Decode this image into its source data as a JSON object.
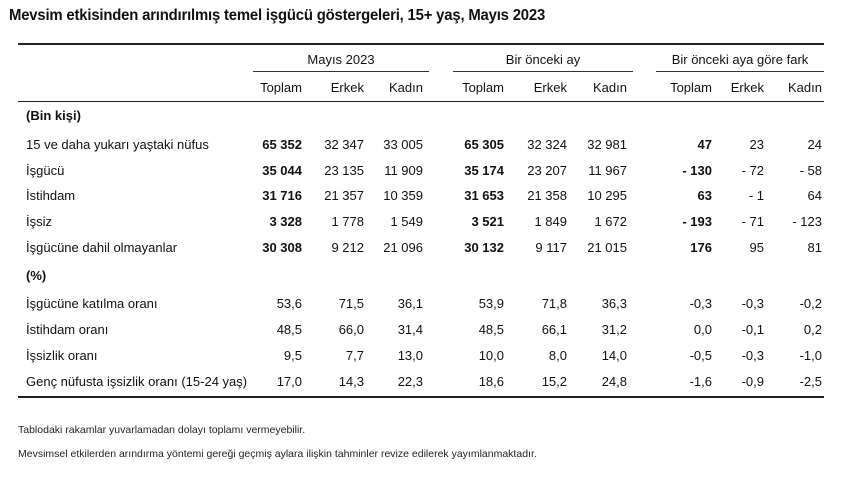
{
  "title": "Mevsim etkisinden arındırılmış temel işgücü göstergeleri, 15+ yaş, Mayıs 2023",
  "groups": [
    "Mayıs 2023",
    "Bir önceki ay",
    "Bir önceki aya göre fark"
  ],
  "subheaders": [
    "Toplam",
    "Erkek",
    "Kadın",
    "Toplam",
    "Erkek",
    "Kadın",
    "Toplam",
    "Erkek",
    "Kadın"
  ],
  "section_thousands": "(Bin kişi)",
  "section_percent": "(%)",
  "rows_thousands": [
    {
      "label": "15 ve daha yukarı yaştaki nüfus",
      "values": [
        "65 352",
        "32 347",
        "33 005",
        "65 305",
        "32 324",
        "32 981",
        "47",
        "23",
        "24"
      ]
    },
    {
      "label": "İşgücü",
      "values": [
        "35 044",
        "23 135",
        "11 909",
        "35 174",
        "23 207",
        "11 967",
        "- 130",
        "- 72",
        "- 58"
      ]
    },
    {
      "label": "İstihdam",
      "values": [
        "31 716",
        "21 357",
        "10 359",
        "31 653",
        "21 358",
        "10 295",
        "63",
        "- 1",
        "64"
      ]
    },
    {
      "label": "İşsiz",
      "values": [
        "3 328",
        "1 778",
        "1 549",
        "3 521",
        "1 849",
        "1 672",
        "- 193",
        "- 71",
        "- 123"
      ]
    },
    {
      "label": "İşgücüne dahil olmayanlar",
      "values": [
        "30 308",
        "9 212",
        "21 096",
        "30 132",
        "9 117",
        "21 015",
        "176",
        "95",
        "81"
      ]
    }
  ],
  "rows_percent": [
    {
      "label": "İşgücüne katılma oranı",
      "values": [
        "53,6",
        "71,5",
        "36,1",
        "53,9",
        "71,8",
        "36,3",
        "-0,3",
        "-0,3",
        "-0,2"
      ]
    },
    {
      "label": "İstihdam oranı",
      "values": [
        "48,5",
        "66,0",
        "31,4",
        "48,5",
        "66,1",
        "31,2",
        "0,0",
        "-0,1",
        "0,2"
      ]
    },
    {
      "label": "İşsizlik oranı",
      "values": [
        "9,5",
        "7,7",
        "13,0",
        "10,0",
        "8,0",
        "14,0",
        "-0,5",
        "-0,3",
        "-1,0"
      ]
    },
    {
      "label": "Genç nüfusta işsizlik oranı (15-24 yaş)",
      "values": [
        "17,0",
        "14,3",
        "22,3",
        "18,6",
        "15,2",
        "24,8",
        "-1,6",
        "-0,9",
        "-2,5"
      ]
    }
  ],
  "notes": [
    "Tablodaki rakamlar yuvarlamadan dolayı toplamı vermeyebilir.",
    "Mevsimsel etkilerden arındırma yöntemi gereği geçmiş aylara ilişkin tahminler revize edilerek yayımlanmaktadır."
  ]
}
